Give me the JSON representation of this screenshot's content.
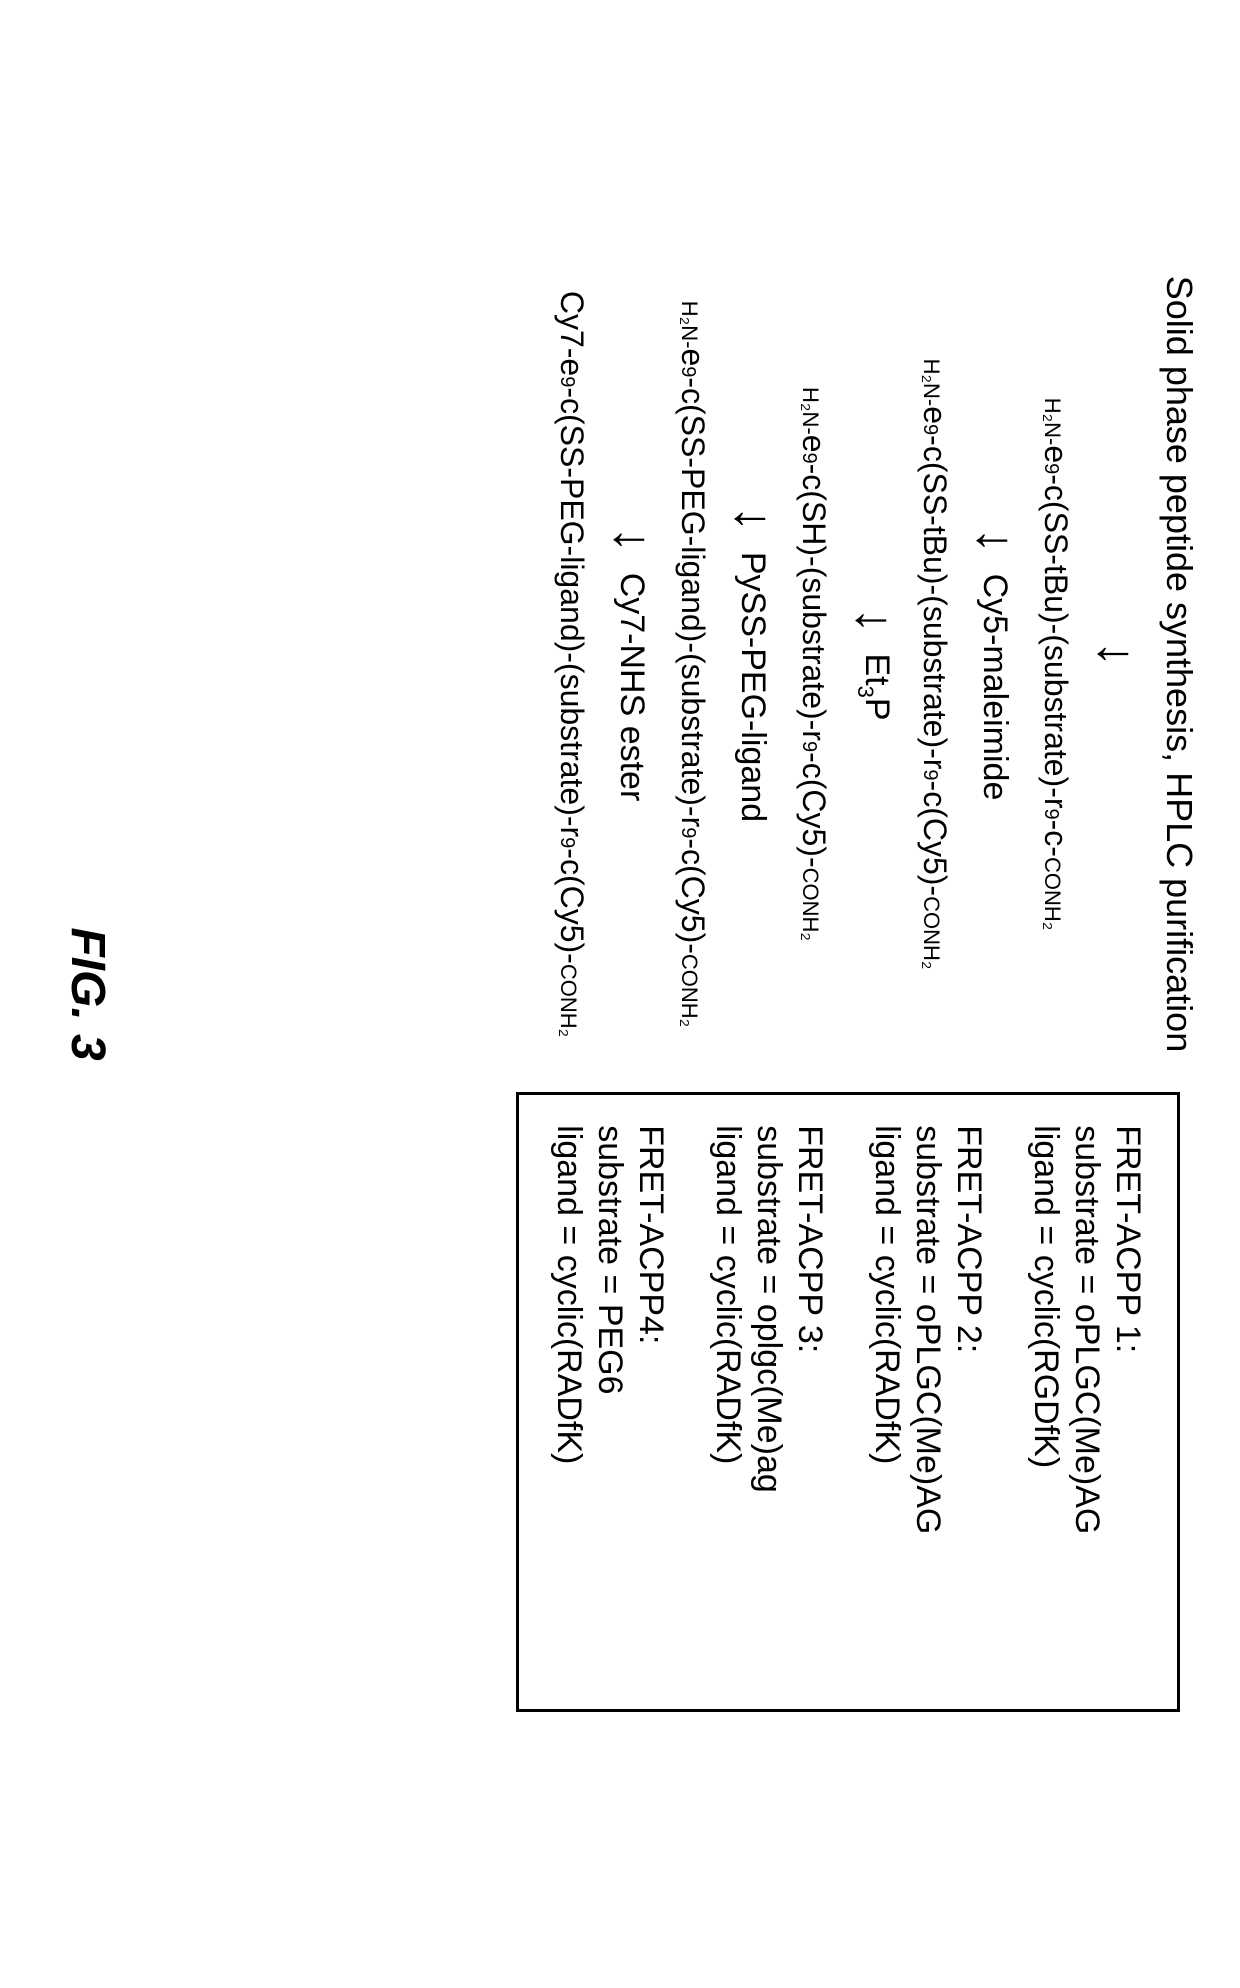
{
  "figure_label": "FIG. 3",
  "colors": {
    "background": "#ffffff",
    "text": "#000000",
    "border": "#000000"
  },
  "typography": {
    "main_fontsize": 36,
    "reagent_fontsize": 34,
    "legend_fontsize": 34,
    "small_caps_fontsize": 22,
    "figlabel_fontsize": 48
  },
  "synthesis": {
    "title": "Solid phase peptide synthesis, HPLC purification",
    "steps": [
      {
        "reagent": "",
        "product_prefix": "H₂N-",
        "product_core": "e",
        "product_sub": "9",
        "product_mid": "-c(SS-tBu)-(substrate)-r",
        "product_sub2": "9",
        "product_tail": "-c-",
        "product_suffix": "CONH₂"
      },
      {
        "reagent": "Cy5-maleimide",
        "product_prefix": "H₂N-",
        "product_core": "e",
        "product_sub": "9",
        "product_mid": "-c(SS-tBu)-(substrate)-r",
        "product_sub2": "9",
        "product_tail": "-c(Cy5)-",
        "product_suffix": "CONH₂"
      },
      {
        "reagent": "Et₃P",
        "product_prefix": "H₂N-",
        "product_core": "e",
        "product_sub": "9",
        "product_mid": "-c(SH)-(substrate)-r",
        "product_sub2": "9",
        "product_tail": "-c(Cy5)-",
        "product_suffix": "CONH₂"
      },
      {
        "reagent": "PySS-PEG-ligand",
        "product_prefix": "H₂N-",
        "product_core": "e",
        "product_sub": "9",
        "product_mid": "-c(SS-PEG-ligand)-(substrate)-r",
        "product_sub2": "9",
        "product_tail": "-c(Cy5)-",
        "product_suffix": "CONH₂"
      },
      {
        "reagent": "Cy7-NHS ester",
        "product_prefix": "Cy7-",
        "product_core": "e",
        "product_sub": "9",
        "product_mid": "-c(SS-PEG-ligand)-(substrate)-r",
        "product_sub2": "9",
        "product_tail": "-c(Cy5)-",
        "product_suffix": "CONH₂"
      }
    ]
  },
  "legend": [
    {
      "name": "FRET-ACPP 1:",
      "substrate": "substrate = oPLGC(Me)AG",
      "ligand": "ligand = cyclic(RGDfK)"
    },
    {
      "name": "FRET-ACPP 2:",
      "substrate": "substrate = oPLGC(Me)AG",
      "ligand": "ligand = cyclic(RADfK)"
    },
    {
      "name": "FRET-ACPP 3:",
      "substrate": "substrate = oplgc(Me)ag",
      "ligand": "ligand = cyclic(RADfK)"
    },
    {
      "name": "FRET-ACPP4:",
      "substrate": "substrate = PEG6",
      "ligand": "ligand = cyclic(RADfK)"
    }
  ]
}
